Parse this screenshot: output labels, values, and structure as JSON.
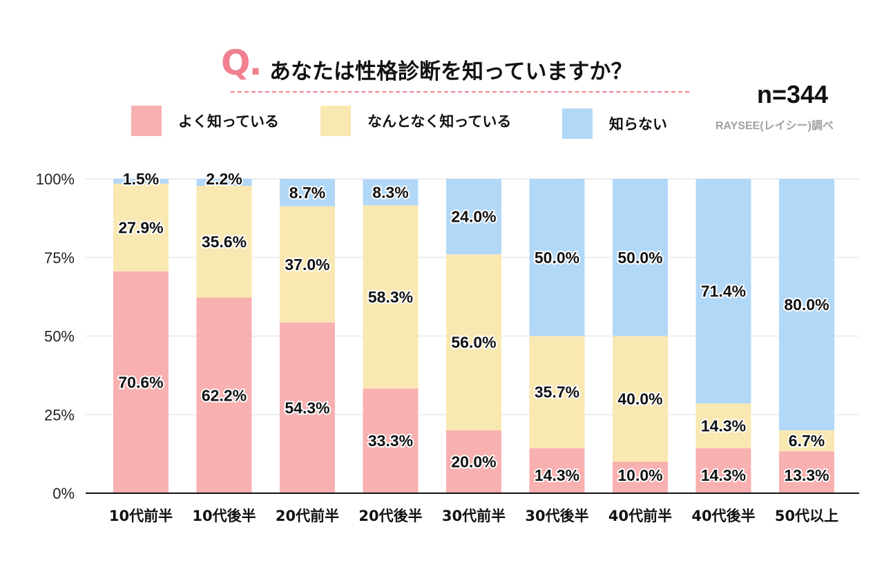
{
  "header": {
    "q_mark": "Q.",
    "question": "あなたは性格診断を知っていますか？",
    "sample_size": "n=344",
    "source": "RAYSEE(レイシー)調べ"
  },
  "colors": {
    "well_known": "#f9b0b0",
    "somewhat_known": "#fae8b2",
    "unknown": "#b2d8f8",
    "accent": "#f08090"
  },
  "chart_data": {
    "type": "bar",
    "stacked": true,
    "categories": [
      "10代前半",
      "10代後半",
      "20代前半",
      "20代後半",
      "30代前半",
      "30代後半",
      "40代前半",
      "40代後半",
      "50代以上"
    ],
    "series": [
      {
        "name": "よく知っている",
        "values": [
          70.6,
          62.2,
          54.3,
          33.3,
          20.0,
          14.3,
          10.0,
          14.3,
          13.3
        ],
        "color": "#f9b0b0"
      },
      {
        "name": "なんとなく知っている",
        "values": [
          27.9,
          35.6,
          37.0,
          58.3,
          56.0,
          35.7,
          40.0,
          14.3,
          6.7
        ],
        "color": "#fae8b2"
      },
      {
        "name": "知らない",
        "values": [
          1.5,
          2.2,
          8.7,
          8.3,
          24.0,
          50.0,
          50.0,
          71.4,
          80.0
        ],
        "color": "#b2d8f8"
      }
    ],
    "ylim": [
      0,
      100
    ],
    "yticks": [
      "0%",
      "25%",
      "50%",
      "75%",
      "100%"
    ],
    "grid": true,
    "legend": "top"
  }
}
